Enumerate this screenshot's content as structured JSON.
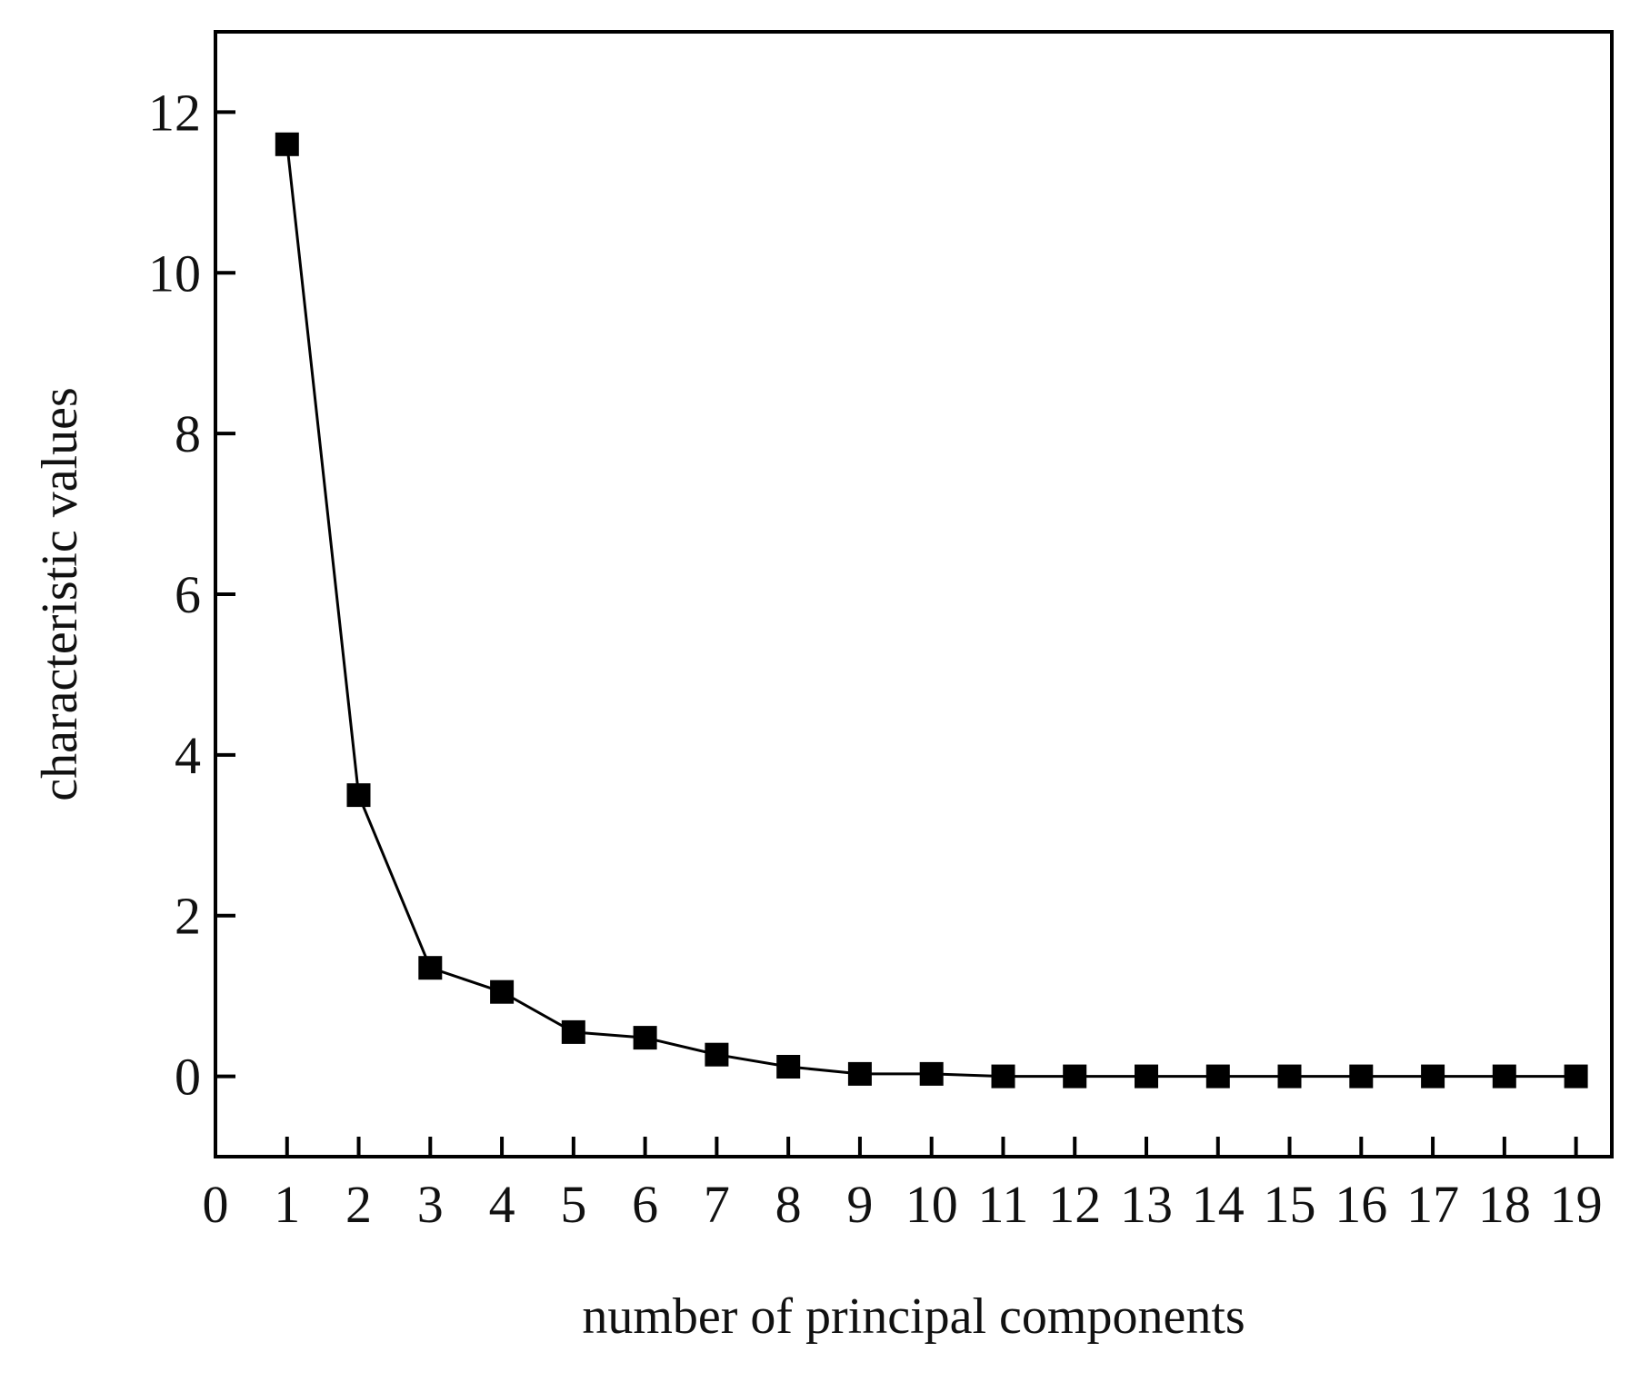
{
  "chart_data": {
    "type": "line",
    "title": "",
    "xlabel": "number of principal components",
    "ylabel": "characteristic values",
    "xlim": [
      0,
      19.5
    ],
    "ylim": [
      -1,
      13
    ],
    "xticks": [
      "0",
      "1",
      "2",
      "3",
      "4",
      "5",
      "6",
      "7",
      "8",
      "9",
      "10",
      "11",
      "12",
      "13",
      "14",
      "15",
      "16",
      "17",
      "18",
      "19"
    ],
    "yticks": [
      "0",
      "2",
      "4",
      "6",
      "8",
      "10",
      "12"
    ],
    "grid": false,
    "legend": "none",
    "marker": "square",
    "line_color": "#000000",
    "marker_color": "#000000",
    "series": [
      {
        "x": [
          1,
          2,
          3,
          4,
          5,
          6,
          7,
          8,
          9,
          10,
          11,
          12,
          13,
          14,
          15,
          16,
          17,
          18,
          19
        ],
        "values": [
          11.6,
          3.5,
          1.35,
          1.05,
          0.55,
          0.48,
          0.27,
          0.12,
          0.03,
          0.03,
          0.0,
          0.0,
          0.0,
          0.0,
          0.0,
          0.0,
          0.0,
          0.0,
          0.0
        ]
      }
    ]
  }
}
